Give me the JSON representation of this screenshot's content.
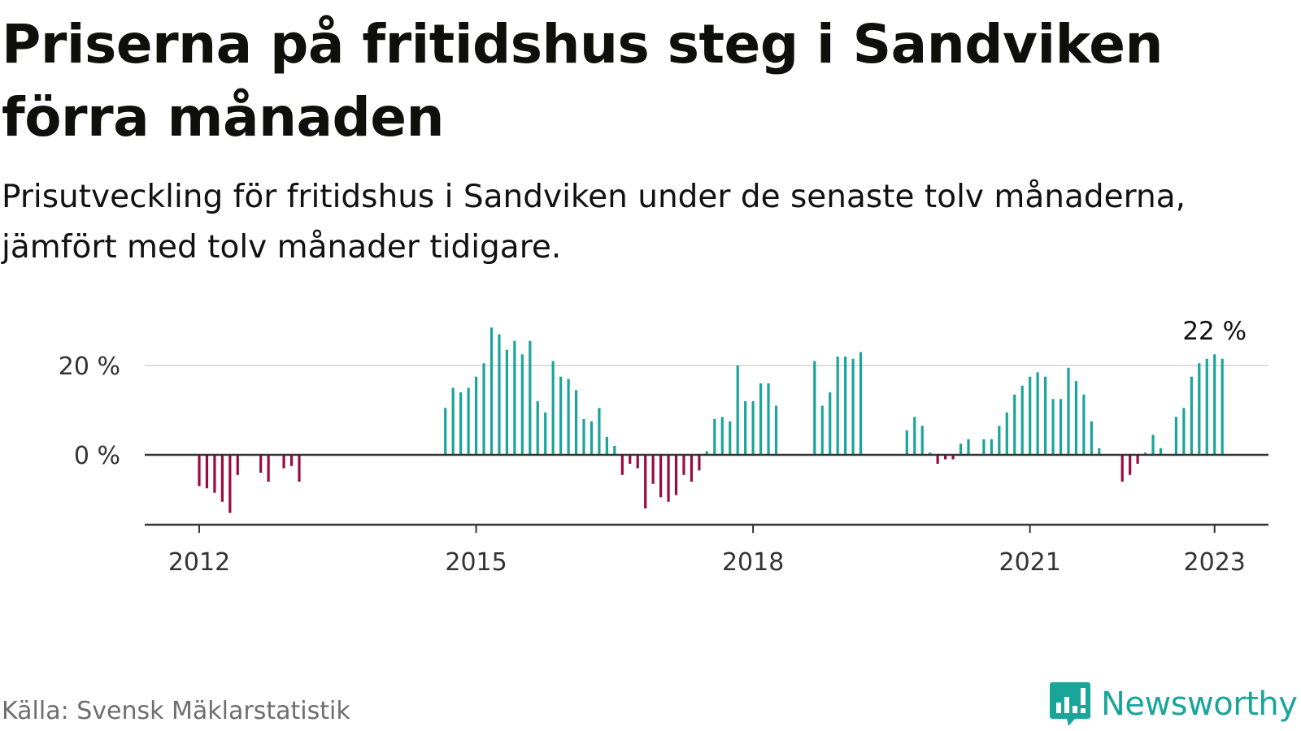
{
  "header": {
    "title": "Priserna på fritidshus steg i Sandviken förra månaden",
    "subtitle": "Prisutveckling för fritidshus i Sandviken under de senaste tolv månaderna, jämfört med tolv månader tidigare."
  },
  "footer": {
    "source": "Källa: Svensk Mäklarstatistik",
    "brand": "Newsworthy",
    "brand_icon": "bar-chart-speech-bubble-icon"
  },
  "colors": {
    "positive": "#1aa59a",
    "negative": "#9b0a3f",
    "gridline": "#dddddd",
    "axis": "#333333",
    "brand": "#1aa59a"
  },
  "chart_data": {
    "type": "bar",
    "title": "",
    "xlabel": "",
    "ylabel": "",
    "ylim": [
      -15,
      30
    ],
    "y_ticks": [
      {
        "value": 0,
        "label": "0 %"
      },
      {
        "value": 20,
        "label": "20 %"
      }
    ],
    "x_ticks": [
      {
        "date": "2012-01",
        "label": "2012"
      },
      {
        "date": "2015-01",
        "label": "2015"
      },
      {
        "date": "2018-01",
        "label": "2018"
      },
      {
        "date": "2021-01",
        "label": "2021"
      },
      {
        "date": "2023-01",
        "label": "2023"
      }
    ],
    "grid": "horizontal",
    "annotation": {
      "date": "2023-01",
      "text": "22 %"
    },
    "series": [
      {
        "values": [
          {
            "date": "2012-01",
            "value": -7
          },
          {
            "date": "2012-02",
            "value": -7.5
          },
          {
            "date": "2012-03",
            "value": -8.5
          },
          {
            "date": "2012-04",
            "value": -10.5
          },
          {
            "date": "2012-05",
            "value": -13
          },
          {
            "date": "2012-06",
            "value": -4.5
          },
          {
            "date": "2012-09",
            "value": -4
          },
          {
            "date": "2012-10",
            "value": -6
          },
          {
            "date": "2012-12",
            "value": -3
          },
          {
            "date": "2013-01",
            "value": -2.5
          },
          {
            "date": "2013-02",
            "value": -6
          },
          {
            "date": "2014-09",
            "value": 10.5
          },
          {
            "date": "2014-10",
            "value": 15
          },
          {
            "date": "2014-11",
            "value": 14
          },
          {
            "date": "2014-12",
            "value": 15
          },
          {
            "date": "2015-01",
            "value": 17.5
          },
          {
            "date": "2015-02",
            "value": 20.5
          },
          {
            "date": "2015-03",
            "value": 28.5
          },
          {
            "date": "2015-04",
            "value": 27
          },
          {
            "date": "2015-05",
            "value": 23.5
          },
          {
            "date": "2015-06",
            "value": 25.5
          },
          {
            "date": "2015-07",
            "value": 22.5
          },
          {
            "date": "2015-08",
            "value": 25.5
          },
          {
            "date": "2015-09",
            "value": 12
          },
          {
            "date": "2015-10",
            "value": 9.5
          },
          {
            "date": "2015-11",
            "value": 21
          },
          {
            "date": "2015-12",
            "value": 17.5
          },
          {
            "date": "2016-01",
            "value": 17
          },
          {
            "date": "2016-02",
            "value": 14.5
          },
          {
            "date": "2016-03",
            "value": 8
          },
          {
            "date": "2016-04",
            "value": 7.5
          },
          {
            "date": "2016-05",
            "value": 10.5
          },
          {
            "date": "2016-06",
            "value": 4
          },
          {
            "date": "2016-07",
            "value": 2
          },
          {
            "date": "2016-08",
            "value": -4.5
          },
          {
            "date": "2016-09",
            "value": -2
          },
          {
            "date": "2016-10",
            "value": -3
          },
          {
            "date": "2016-11",
            "value": -12
          },
          {
            "date": "2016-12",
            "value": -6.5
          },
          {
            "date": "2017-01",
            "value": -9.5
          },
          {
            "date": "2017-02",
            "value": -10.5
          },
          {
            "date": "2017-03",
            "value": -9
          },
          {
            "date": "2017-04",
            "value": -4.5
          },
          {
            "date": "2017-05",
            "value": -6
          },
          {
            "date": "2017-06",
            "value": -3.5
          },
          {
            "date": "2017-07",
            "value": 0.8
          },
          {
            "date": "2017-08",
            "value": 8
          },
          {
            "date": "2017-09",
            "value": 8.5
          },
          {
            "date": "2017-10",
            "value": 7.5
          },
          {
            "date": "2017-11",
            "value": 20
          },
          {
            "date": "2017-12",
            "value": 12
          },
          {
            "date": "2018-01",
            "value": 12
          },
          {
            "date": "2018-02",
            "value": 16
          },
          {
            "date": "2018-03",
            "value": 16
          },
          {
            "date": "2018-04",
            "value": 11
          },
          {
            "date": "2018-09",
            "value": 21
          },
          {
            "date": "2018-10",
            "value": 11
          },
          {
            "date": "2018-11",
            "value": 14
          },
          {
            "date": "2018-12",
            "value": 22
          },
          {
            "date": "2019-01",
            "value": 22
          },
          {
            "date": "2019-02",
            "value": 21.5
          },
          {
            "date": "2019-03",
            "value": 23
          },
          {
            "date": "2019-09",
            "value": 5.5
          },
          {
            "date": "2019-10",
            "value": 8.5
          },
          {
            "date": "2019-11",
            "value": 6.5
          },
          {
            "date": "2019-12",
            "value": 0.5
          },
          {
            "date": "2020-01",
            "value": -2
          },
          {
            "date": "2020-02",
            "value": -1
          },
          {
            "date": "2020-03",
            "value": -1
          },
          {
            "date": "2020-04",
            "value": 2.5
          },
          {
            "date": "2020-05",
            "value": 3.5
          },
          {
            "date": "2020-07",
            "value": 3.5
          },
          {
            "date": "2020-08",
            "value": 3.5
          },
          {
            "date": "2020-09",
            "value": 6.5
          },
          {
            "date": "2020-10",
            "value": 9.5
          },
          {
            "date": "2020-11",
            "value": 13.5
          },
          {
            "date": "2020-12",
            "value": 15.5
          },
          {
            "date": "2021-01",
            "value": 17.5
          },
          {
            "date": "2021-02",
            "value": 18.5
          },
          {
            "date": "2021-03",
            "value": 17.5
          },
          {
            "date": "2021-04",
            "value": 12.5
          },
          {
            "date": "2021-05",
            "value": 12.5
          },
          {
            "date": "2021-06",
            "value": 19.5
          },
          {
            "date": "2021-07",
            "value": 16.5
          },
          {
            "date": "2021-08",
            "value": 13.5
          },
          {
            "date": "2021-09",
            "value": 7.5
          },
          {
            "date": "2021-10",
            "value": 1.5
          },
          {
            "date": "2022-01",
            "value": -6
          },
          {
            "date": "2022-02",
            "value": -4.5
          },
          {
            "date": "2022-03",
            "value": -2
          },
          {
            "date": "2022-04",
            "value": 0.5
          },
          {
            "date": "2022-05",
            "value": 4.5
          },
          {
            "date": "2022-06",
            "value": 1.5
          },
          {
            "date": "2022-08",
            "value": 8.5
          },
          {
            "date": "2022-09",
            "value": 10.5
          },
          {
            "date": "2022-10",
            "value": 17.5
          },
          {
            "date": "2022-11",
            "value": 20.5
          },
          {
            "date": "2022-12",
            "value": 21.5
          },
          {
            "date": "2023-01",
            "value": 22.5
          },
          {
            "date": "2023-02",
            "value": 21.5
          }
        ]
      }
    ]
  }
}
